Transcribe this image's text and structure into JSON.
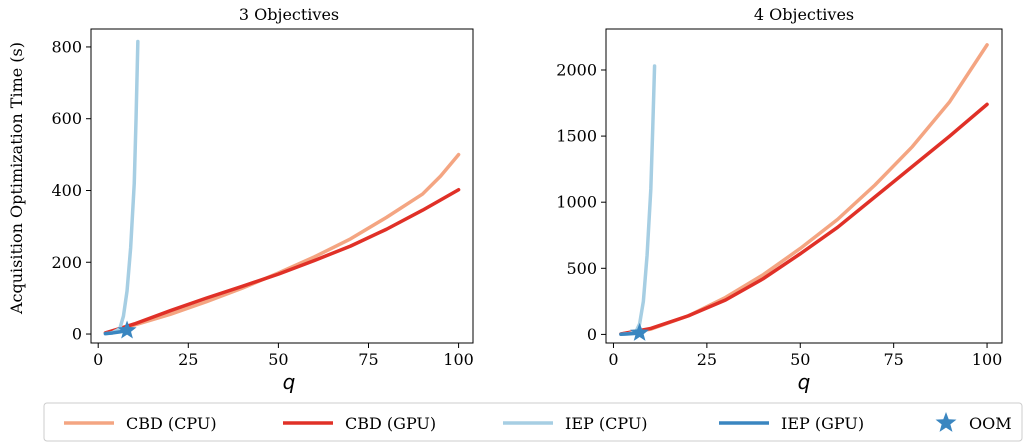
{
  "colors": {
    "cbd_cpu": "#f4a582",
    "cbd_gpu": "#e03027",
    "iep_cpu": "#a6cee3",
    "iep_gpu": "#3a86c0",
    "oom": "#3a86c0"
  },
  "ylabel": "Acquisition Optimization Time (s)",
  "legend": {
    "placement": "bottom",
    "entries": [
      {
        "label": "CBD (CPU)",
        "color": "#f4a582",
        "marker": "line"
      },
      {
        "label": "CBD (GPU)",
        "color": "#e03027",
        "marker": "line"
      },
      {
        "label": "IEP (CPU)",
        "color": "#a6cee3",
        "marker": "line"
      },
      {
        "label": "IEP (GPU)",
        "color": "#3a86c0",
        "marker": "line"
      },
      {
        "label": "OOM",
        "color": "#3a86c0",
        "marker": "star"
      }
    ]
  },
  "chart_data": [
    {
      "type": "line",
      "title": "3 Objectives",
      "xlabel": "q",
      "ylabel": "Acquisition Optimization Time (s)",
      "xlim": [
        -2,
        104
      ],
      "ylim": [
        -25,
        850
      ],
      "xticks": [
        0,
        25,
        50,
        75,
        100
      ],
      "yticks": [
        0,
        200,
        400,
        600,
        800
      ],
      "grid": false,
      "series": [
        {
          "name": "CBD (CPU)",
          "color": "#f4a582",
          "x": [
            2,
            10,
            20,
            30,
            40,
            50,
            60,
            70,
            80,
            90,
            95,
            100
          ],
          "y": [
            3,
            25,
            55,
            90,
            128,
            170,
            215,
            265,
            325,
            390,
            440,
            500
          ]
        },
        {
          "name": "CBD (GPU)",
          "color": "#e03027",
          "x": [
            2,
            10,
            20,
            30,
            40,
            50,
            60,
            70,
            80,
            90,
            100
          ],
          "y": [
            3,
            28,
            65,
            100,
            133,
            167,
            205,
            245,
            292,
            345,
            402
          ]
        },
        {
          "name": "IEP (CPU)",
          "color": "#a6cee3",
          "x": [
            2,
            4,
            6,
            7,
            8,
            9,
            10,
            10.5,
            11
          ],
          "y": [
            1,
            4,
            15,
            50,
            120,
            240,
            420,
            600,
            815
          ]
        },
        {
          "name": "IEP (GPU)",
          "color": "#3a86c0",
          "x": [
            2,
            4,
            6,
            8
          ],
          "y": [
            1,
            3,
            6,
            10
          ]
        }
      ],
      "oom": {
        "x": 8,
        "y": 10
      }
    },
    {
      "type": "line",
      "title": "4 Objectives",
      "xlabel": "q",
      "ylabel": "",
      "xlim": [
        -2,
        104
      ],
      "ylim": [
        -65,
        2310
      ],
      "xticks": [
        0,
        25,
        50,
        75,
        100
      ],
      "yticks": [
        0,
        500,
        1000,
        1500,
        2000
      ],
      "grid": false,
      "series": [
        {
          "name": "CBD (CPU)",
          "color": "#f4a582",
          "x": [
            2,
            10,
            20,
            30,
            40,
            50,
            60,
            70,
            80,
            90,
            100
          ],
          "y": [
            3,
            40,
            140,
            280,
            450,
            650,
            870,
            1130,
            1420,
            1760,
            2190
          ]
        },
        {
          "name": "CBD (GPU)",
          "color": "#e03027",
          "x": [
            2,
            10,
            20,
            30,
            40,
            50,
            60,
            70,
            80,
            90,
            100
          ],
          "y": [
            3,
            45,
            140,
            260,
            420,
            610,
            810,
            1040,
            1270,
            1500,
            1740
          ]
        },
        {
          "name": "IEP (CPU)",
          "color": "#a6cee3",
          "x": [
            2,
            4,
            6,
            7,
            8,
            9,
            10,
            10.5,
            11
          ],
          "y": [
            1,
            5,
            20,
            80,
            250,
            600,
            1100,
            1550,
            2030
          ]
        },
        {
          "name": "IEP (GPU)",
          "color": "#3a86c0",
          "x": [
            2,
            4,
            6,
            7
          ],
          "y": [
            1,
            4,
            8,
            12
          ]
        }
      ],
      "oom": {
        "x": 7,
        "y": 12
      }
    }
  ]
}
